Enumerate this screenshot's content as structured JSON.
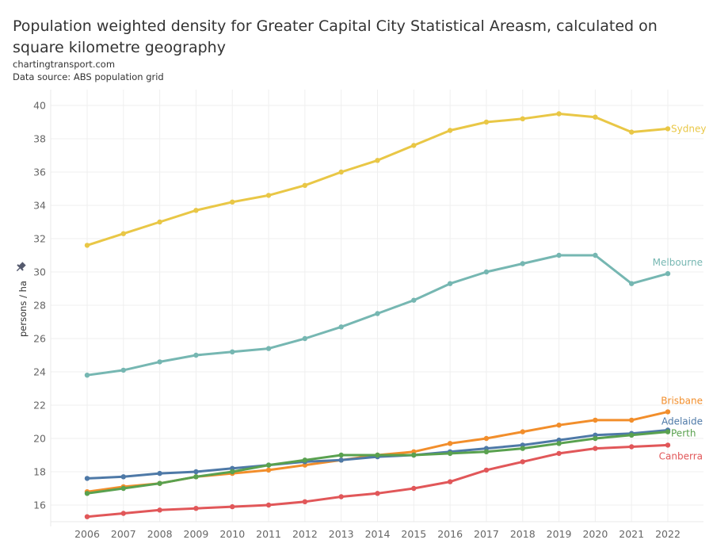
{
  "header": {
    "title": "Population weighted density for Greater Capital City Statistical Areasm, calculated on square kilometre geography",
    "source_site": "chartingtransport.com",
    "data_source": "Data source: ABS population grid"
  },
  "icons": {
    "pin": "pin-icon"
  },
  "chart_data": {
    "type": "line",
    "title": "Population weighted density for Greater Capital City Statistical Areasm, calculated on square kilometre geography",
    "xlabel": "",
    "ylabel": "persons / ha",
    "x": [
      2006,
      2007,
      2008,
      2009,
      2010,
      2011,
      2012,
      2013,
      2014,
      2015,
      2016,
      2017,
      2018,
      2019,
      2020,
      2021,
      2022
    ],
    "x_tick_labels": [
      "2006",
      "2007",
      "2008",
      "2009",
      "2010",
      "2011",
      "2012",
      "2013",
      "2014",
      "2015",
      "2016",
      "2017",
      "2018",
      "2019",
      "2020",
      "2021",
      "2022"
    ],
    "y_ticks": [
      16,
      18,
      20,
      22,
      24,
      26,
      28,
      30,
      32,
      34,
      36,
      38,
      40
    ],
    "ylim": [
      15,
      41
    ],
    "xlim": [
      2005,
      2023
    ],
    "grid": true,
    "legend": "direct labels at line ends (right)",
    "series": [
      {
        "name": "Sydney",
        "color": "#e9c746",
        "values": [
          31.6,
          32.3,
          33.0,
          33.7,
          34.2,
          34.6,
          35.2,
          36.0,
          36.7,
          37.6,
          38.5,
          39.0,
          39.2,
          39.5,
          39.3,
          38.4,
          38.6
        ]
      },
      {
        "name": "Melbourne",
        "color": "#76b7b2",
        "values": [
          23.8,
          24.1,
          24.6,
          25.0,
          25.2,
          25.4,
          26.0,
          26.7,
          27.5,
          28.3,
          29.3,
          30.0,
          30.5,
          31.0,
          31.0,
          29.3,
          29.9
        ]
      },
      {
        "name": "Brisbane",
        "color": "#f28e2b",
        "values": [
          16.8,
          17.1,
          17.3,
          17.7,
          17.9,
          18.1,
          18.4,
          18.7,
          19.0,
          19.2,
          19.7,
          20.0,
          20.4,
          20.8,
          21.1,
          21.1,
          21.6
        ]
      },
      {
        "name": "Adelaide",
        "color": "#4e79a7",
        "values": [
          17.6,
          17.7,
          17.9,
          18.0,
          18.2,
          18.4,
          18.6,
          18.7,
          18.9,
          19.0,
          19.2,
          19.4,
          19.6,
          19.9,
          20.2,
          20.3,
          20.5
        ]
      },
      {
        "name": "Perth",
        "color": "#59a14f",
        "values": [
          16.7,
          17.0,
          17.3,
          17.7,
          18.0,
          18.4,
          18.7,
          19.0,
          19.0,
          19.0,
          19.1,
          19.2,
          19.4,
          19.7,
          20.0,
          20.2,
          20.4
        ]
      },
      {
        "name": "Canberra",
        "color": "#e15759",
        "values": [
          15.3,
          15.5,
          15.7,
          15.8,
          15.9,
          16.0,
          16.2,
          16.5,
          16.7,
          17.0,
          17.4,
          18.1,
          18.6,
          19.1,
          19.4,
          19.5,
          19.6
        ]
      }
    ],
    "label_placement": {
      "Sydney": "right",
      "Melbourne": "above",
      "Brisbane": "above",
      "Adelaide": "above",
      "Perth": "right",
      "Canberra": "below"
    }
  }
}
